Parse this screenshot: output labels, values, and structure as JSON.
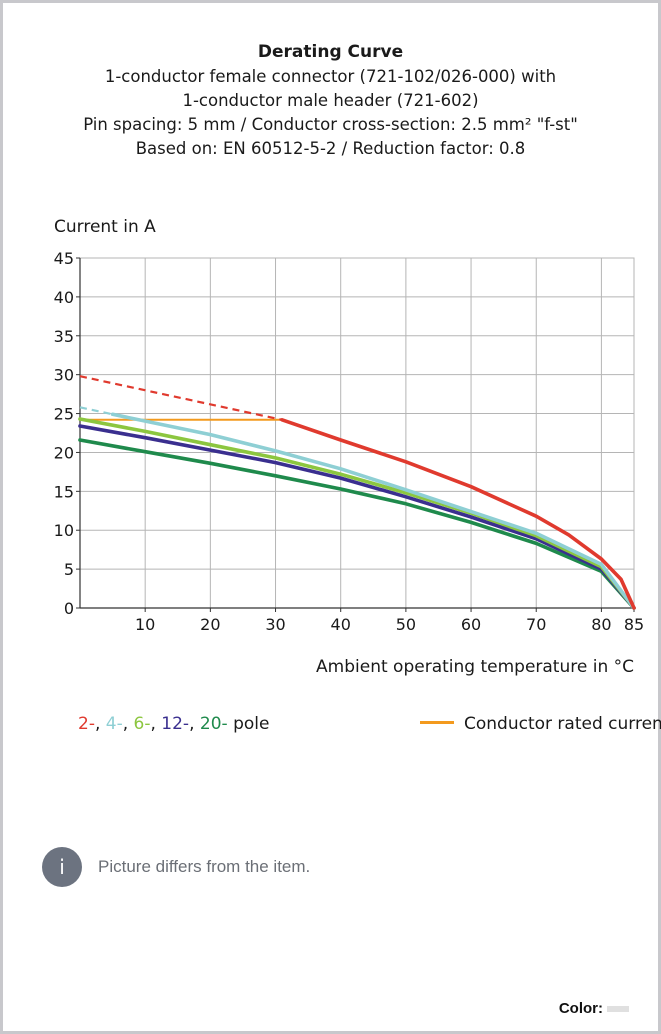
{
  "chart_data": {
    "type": "line",
    "title": "Derating Curve",
    "subtitle_lines": [
      "1-conductor female connector (721-102/026-000) with",
      "1-conductor male header (721-602)",
      "Pin spacing: 5 mm / Conductor cross-section: 2.5 mm² \"f-st\"",
      "Based on: EN 60512-5-2 / Reduction factor: 0.8"
    ],
    "ylabel": "Current in A",
    "xlabel": "Ambient operating temperature in °C",
    "xlim": [
      0,
      85
    ],
    "ylim": [
      0,
      45
    ],
    "xticks": [
      10,
      20,
      30,
      40,
      50,
      60,
      70,
      80,
      85
    ],
    "yticks": [
      0,
      5,
      10,
      15,
      20,
      25,
      30,
      35,
      40,
      45
    ],
    "grid": true,
    "series": [
      {
        "name": "2-",
        "color": "#e03a2e",
        "dashed_x": [
          0,
          31
        ],
        "dashed_y": [
          29.8,
          24.2
        ],
        "x": [
          31,
          40,
          50,
          60,
          70,
          75,
          80,
          83,
          85
        ],
        "y": [
          24.2,
          21.6,
          18.8,
          15.6,
          11.8,
          9.4,
          6.3,
          3.7,
          0
        ]
      },
      {
        "name": "4-",
        "color": "#8ecfd4",
        "dashed_x": [
          0,
          5
        ],
        "dashed_y": [
          25.8,
          24.9
        ],
        "x": [
          5,
          20,
          30,
          40,
          50,
          60,
          70,
          80,
          85
        ],
        "y": [
          24.9,
          22.3,
          20.2,
          17.9,
          15.2,
          12.4,
          9.6,
          5.6,
          0
        ]
      },
      {
        "name": "6-",
        "color": "#8cc63f",
        "x": [
          0,
          10,
          20,
          30,
          40,
          50,
          60,
          70,
          80,
          85
        ],
        "y": [
          24.3,
          22.7,
          21.0,
          19.3,
          17.2,
          14.8,
          12.2,
          9.3,
          5.3,
          0
        ]
      },
      {
        "name": "12-",
        "color": "#3a2f8f",
        "x": [
          0,
          10,
          20,
          30,
          40,
          50,
          60,
          70,
          80,
          85
        ],
        "y": [
          23.4,
          21.9,
          20.3,
          18.7,
          16.7,
          14.3,
          11.7,
          8.9,
          5.0,
          0
        ]
      },
      {
        "name": "20-",
        "color": "#1f8a4c",
        "x": [
          0,
          10,
          20,
          30,
          40,
          50,
          60,
          70,
          80,
          85
        ],
        "y": [
          21.6,
          20.1,
          18.6,
          17.0,
          15.3,
          13.4,
          11.0,
          8.3,
          4.7,
          0
        ]
      }
    ],
    "rated_current": {
      "name": "Conductor rated current",
      "color": "#f39a1e",
      "x": [
        0,
        31
      ],
      "y": [
        24.2,
        24.2
      ]
    },
    "legend_placement": "bottom"
  },
  "legend": {
    "poles": [
      {
        "text": "2-",
        "color": "#e03a2e"
      },
      {
        "text": ", ",
        "color": "#1a1a1a"
      },
      {
        "text": "4-",
        "color": "#8ecfd4"
      },
      {
        "text": ", ",
        "color": "#1a1a1a"
      },
      {
        "text": "6-",
        "color": "#8cc63f"
      },
      {
        "text": ", ",
        "color": "#1a1a1a"
      },
      {
        "text": "12-",
        "color": "#3a2f8f"
      },
      {
        "text": ", ",
        "color": "#1a1a1a"
      },
      {
        "text": "20-",
        "color": "#1f8a4c"
      },
      {
        "text": " pole",
        "color": "#1a1a1a"
      }
    ],
    "rated_label": "Conductor rated current"
  },
  "note": {
    "icon": "info-icon",
    "icon_glyph": "i",
    "text": "Picture differs from the item."
  },
  "color_field": {
    "label": "Color:",
    "swatch": "#e0e0e0"
  }
}
